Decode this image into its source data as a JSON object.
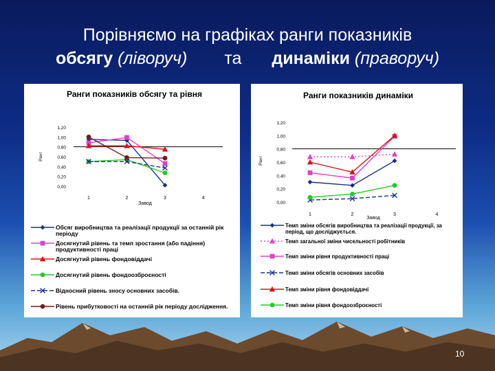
{
  "slide": {
    "title_line1": "Порівняємо на графіках ранги показників",
    "title_volume": "обсягу",
    "title_left_note": "(ліворуч)",
    "title_and": "та",
    "title_dynamics": "динаміки",
    "title_right_note": "(праворуч)",
    "page_number": "10"
  },
  "chart_data": [
    {
      "type": "line",
      "title": "Ранги показників обсягу та рівня",
      "xlabel": "Завод",
      "ylabel": "Ранг",
      "categories": [
        "1",
        "2",
        "3",
        "4"
      ],
      "ylim": [
        0,
        1.2
      ],
      "yticks": [
        "0,00",
        "0,20",
        "0,40",
        "0,60",
        "0,80",
        "1,00",
        "1,20"
      ],
      "reference_line": 0.8,
      "grid": false,
      "legend_position": "bottom",
      "series": [
        {
          "name": "Обсяг виробництва та реалізації продукції за останній рік періоду",
          "color": "#1a2f8c",
          "marker": "diamond",
          "dash": "solid",
          "values": [
            0.95,
            0.93,
            0.02,
            null
          ]
        },
        {
          "name": "Досягнутий рівень та темп зростання (або падіння) продуктивності праці",
          "color": "#e040c8",
          "marker": "square",
          "dash": "solid",
          "values": [
            0.88,
            0.99,
            0.46,
            null
          ]
        },
        {
          "name": "Досягнутий рівень фондовіддачі",
          "color": "#dd1111",
          "marker": "triangle",
          "dash": "solid",
          "values": [
            0.82,
            0.82,
            0.75,
            null
          ]
        },
        {
          "name": "Досягнутий рівень фондоозброєності",
          "color": "#22cc22",
          "marker": "circle",
          "dash": "solid",
          "values": [
            0.5,
            0.54,
            0.27,
            null
          ]
        },
        {
          "name": "Відносний рівень зносу основних засобів.",
          "color": "#1a2f8c",
          "marker": "x",
          "dash": "dashed",
          "values": [
            0.5,
            0.5,
            0.37,
            null
          ]
        },
        {
          "name": "Рівень прибутковості на останній рік періоду дослідження.",
          "color": "#7a1a1a",
          "marker": "circle",
          "dash": "solid",
          "values": [
            1.0,
            0.58,
            0.57,
            null
          ]
        }
      ]
    },
    {
      "type": "line",
      "title": "Ранги показників динаміки",
      "xlabel": "Завод",
      "ylabel": "Ранг",
      "categories": [
        "1",
        "2",
        "3",
        "4"
      ],
      "ylim": [
        0,
        1.2
      ],
      "yticks": [
        "0,00",
        "0,20",
        "0,40",
        "0,60",
        "0,80",
        "1,00",
        "1,20"
      ],
      "reference_line": 0.8,
      "grid": false,
      "legend_position": "bottom",
      "series": [
        {
          "name": "Темп зміни обсягів виробництва та реалізації продукції, за період, що досліджується.",
          "color": "#1a2f8c",
          "marker": "diamond",
          "dash": "solid",
          "values": [
            0.3,
            0.25,
            0.62,
            null
          ]
        },
        {
          "name": "Темп загальної зміни чисельності робітників",
          "color": "#e040c8",
          "marker": "triangle",
          "dash": "dotted",
          "values": [
            0.68,
            0.68,
            0.72,
            null
          ]
        },
        {
          "name": "Темп зміни рівня продуктивності праці",
          "color": "#e040c8",
          "marker": "square",
          "dash": "solid",
          "values": [
            0.44,
            0.36,
            0.99,
            null
          ]
        },
        {
          "name": "Темп зміни обсягів основних засобів",
          "color": "#1a2f8c",
          "marker": "x",
          "dash": "dashed",
          "values": [
            0.03,
            0.05,
            0.1,
            null
          ]
        },
        {
          "name": "Темп зміни рівня фондовіддачі",
          "color": "#dd1111",
          "marker": "triangle",
          "dash": "solid",
          "values": [
            0.6,
            0.45,
            1.0,
            null
          ]
        },
        {
          "name": "Темп зміни рівня фондоозброєності",
          "color": "#22cc22",
          "marker": "circle",
          "dash": "solid",
          "values": [
            0.07,
            0.12,
            0.25,
            null
          ]
        }
      ]
    }
  ]
}
